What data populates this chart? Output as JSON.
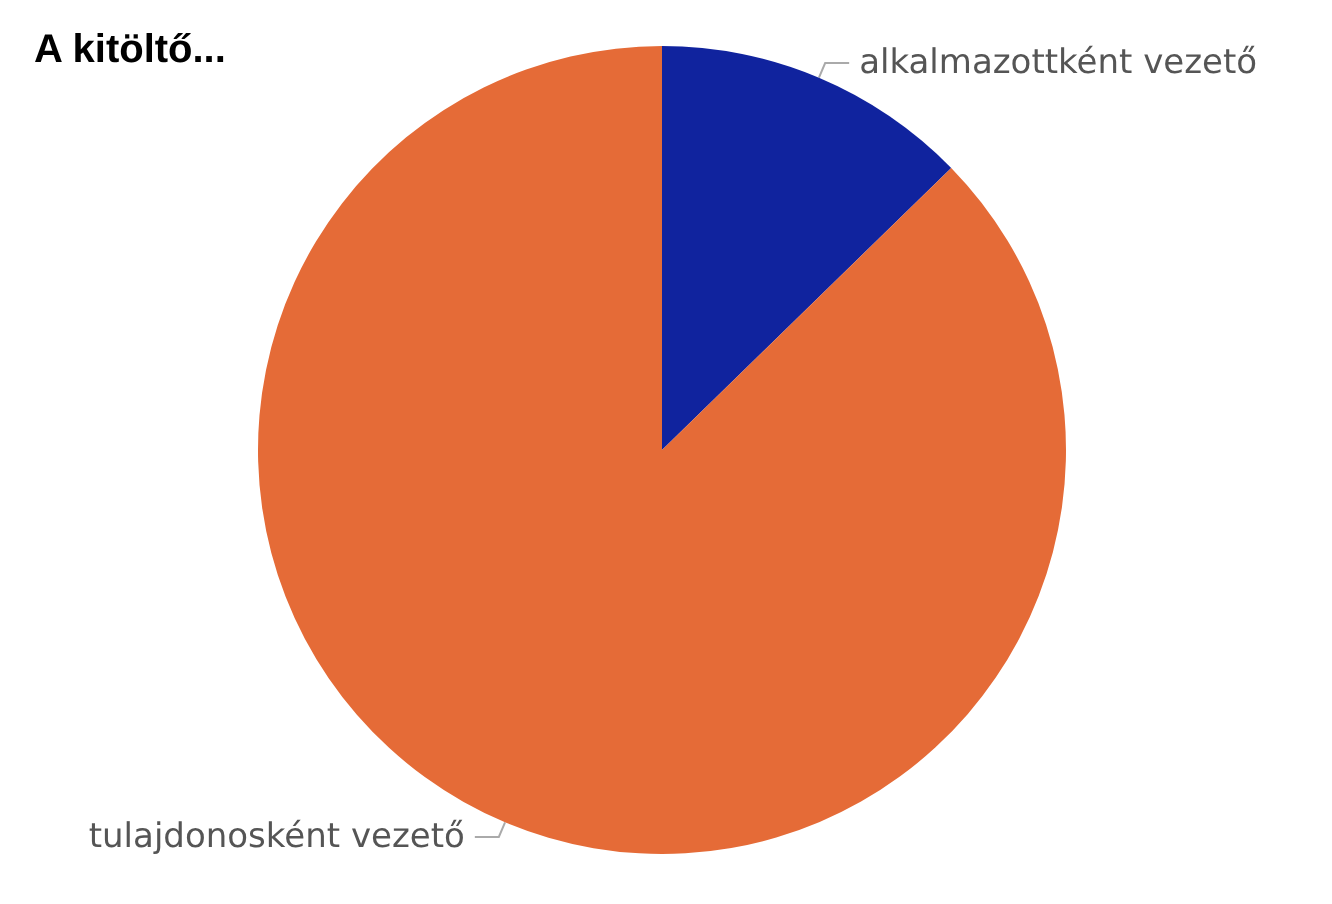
{
  "chart_data": {
    "type": "pie",
    "title": "A kitöltő...",
    "categories": [
      "alkalmazottként vezető",
      "tulajdonosként vezető"
    ],
    "values": [
      12.7,
      87.3
    ],
    "colors": [
      "#10239e",
      "#e56b37"
    ],
    "legend": false
  }
}
